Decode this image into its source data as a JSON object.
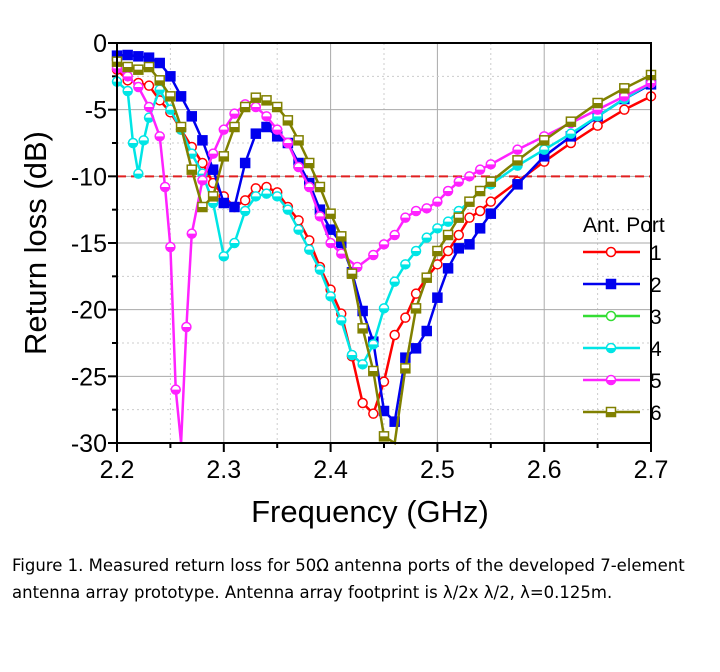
{
  "chart_data": {
    "type": "line",
    "xlabel": "Frequency (GHz)",
    "ylabel": "Return loss (dB)",
    "xlim": [
      2.2,
      2.7
    ],
    "ylim": [
      -30,
      0
    ],
    "xticks": [
      "2.2",
      "2.3",
      "2.4",
      "2.5",
      "2.6",
      "2.7"
    ],
    "yticks": [
      "0",
      "-5",
      "-10",
      "-15",
      "-20",
      "-25",
      "-30"
    ],
    "grid": true,
    "reference_line": {
      "y": -10,
      "color": "#e02020",
      "style": "dashed"
    },
    "legend": {
      "title": "Ant. Port",
      "placement": "right"
    },
    "series": [
      {
        "name": "1",
        "color": "#ff0000",
        "marker": "open-circle",
        "x": [
          2.2,
          2.21,
          2.22,
          2.23,
          2.24,
          2.25,
          2.26,
          2.27,
          2.28,
          2.29,
          2.3,
          2.31,
          2.32,
          2.33,
          2.34,
          2.35,
          2.36,
          2.37,
          2.38,
          2.39,
          2.4,
          2.41,
          2.42,
          2.43,
          2.44,
          2.45,
          2.46,
          2.47,
          2.48,
          2.49,
          2.5,
          2.51,
          2.52,
          2.53,
          2.54,
          2.55,
          2.575,
          2.6,
          2.625,
          2.65,
          2.675,
          2.7
        ],
        "y": [
          -2,
          -2.8,
          -3,
          -3.2,
          -4.3,
          -5.2,
          -6.5,
          -7.8,
          -9,
          -10.5,
          -11.5,
          -12.3,
          -11.8,
          -10.9,
          -10.8,
          -11.2,
          -12.3,
          -13.3,
          -14.8,
          -16.8,
          -18.5,
          -20.3,
          -23.5,
          -27,
          -27.8,
          -25.4,
          -21.9,
          -20.6,
          -18.8,
          -17.6,
          -16.6,
          -15.6,
          -14.4,
          -13.1,
          -12.6,
          -11.9,
          -10.4,
          -8.9,
          -7.5,
          -6.2,
          -5,
          -4
        ]
      },
      {
        "name": "2",
        "color": "#0000ee",
        "marker": "filled-square",
        "x": [
          2.2,
          2.21,
          2.22,
          2.23,
          2.24,
          2.25,
          2.26,
          2.27,
          2.28,
          2.29,
          2.3,
          2.31,
          2.32,
          2.33,
          2.34,
          2.35,
          2.36,
          2.37,
          2.38,
          2.39,
          2.4,
          2.41,
          2.42,
          2.43,
          2.44,
          2.45,
          2.46,
          2.47,
          2.48,
          2.49,
          2.5,
          2.51,
          2.52,
          2.53,
          2.54,
          2.55,
          2.575,
          2.6,
          2.625,
          2.65,
          2.675,
          2.7
        ],
        "y": [
          -0.95,
          -0.9,
          -1,
          -1.1,
          -1.5,
          -2.5,
          -4,
          -5.5,
          -7.3,
          -9.5,
          -12,
          -12.3,
          -9,
          -6.8,
          -6.3,
          -7,
          -7.5,
          -9,
          -10.5,
          -12.5,
          -14,
          -15,
          -17.2,
          -20.1,
          -22.4,
          -27.6,
          -28.4,
          -23.6,
          -22.9,
          -21.6,
          -19.1,
          -16.9,
          -15.4,
          -15.1,
          -13.9,
          -12.8,
          -10.6,
          -8.5,
          -7,
          -5.5,
          -4.2,
          -3.1
        ]
      },
      {
        "name": "3",
        "color": "#33dd33",
        "marker": "open-circle",
        "x": [],
        "y": []
      },
      {
        "name": "4",
        "color": "#00e5e5",
        "marker": "half-circle",
        "x": [
          2.2,
          2.21,
          2.215,
          2.22,
          2.225,
          2.23,
          2.24,
          2.25,
          2.26,
          2.27,
          2.28,
          2.29,
          2.3,
          2.31,
          2.32,
          2.33,
          2.34,
          2.35,
          2.36,
          2.37,
          2.38,
          2.39,
          2.4,
          2.41,
          2.42,
          2.43,
          2.44,
          2.45,
          2.46,
          2.47,
          2.48,
          2.49,
          2.5,
          2.51,
          2.52,
          2.53,
          2.54,
          2.55,
          2.575,
          2.6,
          2.625,
          2.65,
          2.675,
          2.7
        ],
        "y": [
          -2.9,
          -3.6,
          -7.5,
          -9.8,
          -7.3,
          -5.6,
          -3.5,
          -5,
          -6.5,
          -8.3,
          -9.8,
          -12,
          -16,
          -15,
          -12.6,
          -11.5,
          -11.3,
          -11.5,
          -12.5,
          -14,
          -15.5,
          -17,
          -19,
          -20.8,
          -23.4,
          -24.1,
          -22.6,
          -19.9,
          -17.9,
          -16.6,
          -15.6,
          -14.6,
          -13.9,
          -13.4,
          -12.6,
          -11.9,
          -11.1,
          -10.6,
          -9.2,
          -8,
          -6.8,
          -5.5,
          -4.2,
          -3
        ]
      },
      {
        "name": "5",
        "color": "#ff22ff",
        "marker": "half-circle",
        "x": [
          2.2,
          2.21,
          2.22,
          2.23,
          2.24,
          2.245,
          2.25,
          2.255,
          2.26,
          2.265,
          2.27,
          2.28,
          2.29,
          2.3,
          2.31,
          2.32,
          2.33,
          2.34,
          2.35,
          2.36,
          2.37,
          2.38,
          2.39,
          2.4,
          2.41,
          2.425,
          2.44,
          2.45,
          2.46,
          2.47,
          2.48,
          2.49,
          2.5,
          2.51,
          2.52,
          2.53,
          2.54,
          2.55,
          2.575,
          2.6,
          2.625,
          2.65,
          2.675,
          2.7
        ],
        "y": [
          -1.9,
          -2.5,
          -3.3,
          -4.8,
          -7,
          -10.8,
          -15.3,
          -26,
          -30,
          -21.3,
          -14.3,
          -10.3,
          -8.3,
          -6.5,
          -5.3,
          -4.6,
          -4.8,
          -5.5,
          -6.5,
          -7.5,
          -9.3,
          -10.8,
          -13,
          -15,
          -15.8,
          -16.8,
          -15.9,
          -15.1,
          -14.4,
          -13.1,
          -12.6,
          -12.4,
          -11.9,
          -11.1,
          -10.4,
          -10,
          -9.5,
          -9.1,
          -8,
          -7,
          -6,
          -5,
          -4,
          -3
        ]
      },
      {
        "name": "6",
        "color": "#808000",
        "marker": "half-square",
        "x": [
          2.2,
          2.21,
          2.22,
          2.23,
          2.24,
          2.25,
          2.26,
          2.27,
          2.28,
          2.29,
          2.3,
          2.31,
          2.32,
          2.33,
          2.34,
          2.35,
          2.36,
          2.37,
          2.38,
          2.39,
          2.4,
          2.41,
          2.42,
          2.43,
          2.44,
          2.45,
          2.46,
          2.47,
          2.48,
          2.49,
          2.5,
          2.51,
          2.52,
          2.53,
          2.54,
          2.55,
          2.575,
          2.6,
          2.625,
          2.65,
          2.675,
          2.7
        ],
        "y": [
          -1.4,
          -1.8,
          -2,
          -1.8,
          -2.8,
          -4,
          -6.3,
          -9.5,
          -12.3,
          -11.5,
          -8.5,
          -6.3,
          -4.8,
          -4.1,
          -4.3,
          -4.8,
          -5.8,
          -7.3,
          -9,
          -10.8,
          -12.8,
          -14.5,
          -17.3,
          -21.4,
          -24.6,
          -29.5,
          -30,
          -24.4,
          -19.9,
          -17.6,
          -15.6,
          -14.4,
          -13.1,
          -11.9,
          -11.1,
          -10.4,
          -8.8,
          -7.3,
          -5.9,
          -4.5,
          -3.4,
          -2.4
        ]
      }
    ]
  },
  "caption": "Figure 1. Measured return loss for 50Ω antenna ports of the developed 7-element antenna array prototype. Antenna array footprint is λ/2x λ/2, λ=0.125m."
}
